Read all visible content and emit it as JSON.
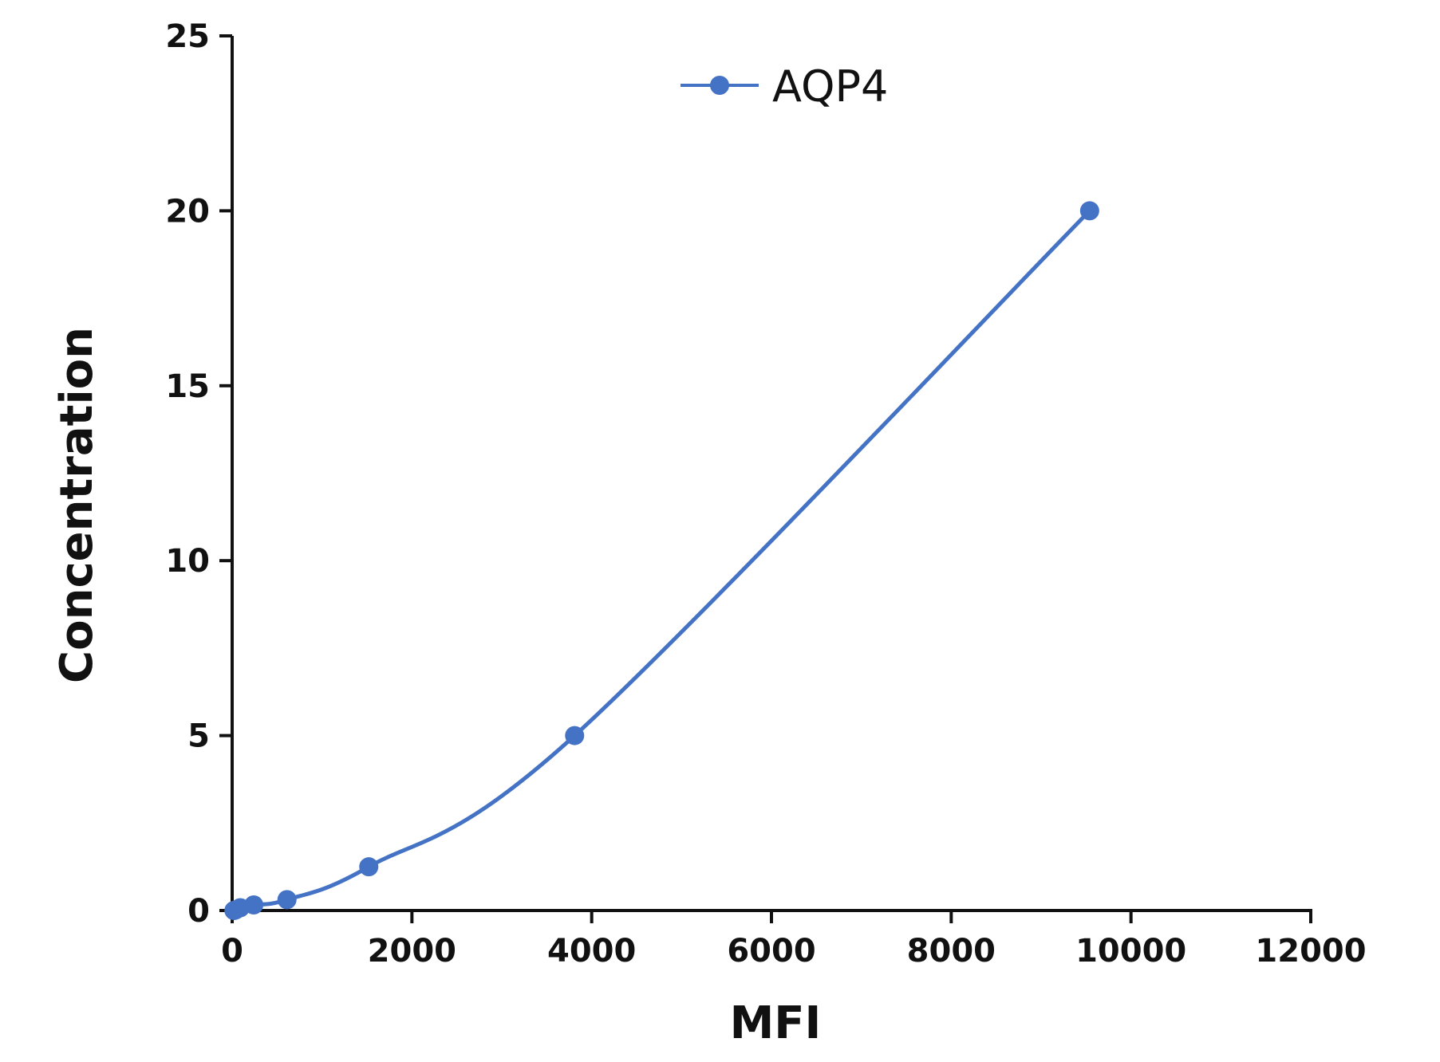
{
  "chart_data": {
    "type": "line",
    "xlabel": "MFI",
    "ylabel": "Concentration",
    "xlim": [
      0,
      12000
    ],
    "ylim": [
      0,
      25
    ],
    "x_ticks": [
      "0",
      "2000",
      "4000",
      "6000",
      "8000",
      "10000",
      "12000"
    ],
    "y_ticks": [
      "0",
      "5",
      "10",
      "15",
      "20",
      "25"
    ],
    "grid": false,
    "legend_position": "top-center",
    "series": [
      {
        "name": "AQP4",
        "color": "#4472c4",
        "x": [
          20,
          40,
          90,
          240,
          610,
          1520,
          3810,
          9540
        ],
        "y": [
          0,
          0.02,
          0.08,
          0.16,
          0.31,
          1.25,
          5,
          20
        ]
      }
    ]
  }
}
